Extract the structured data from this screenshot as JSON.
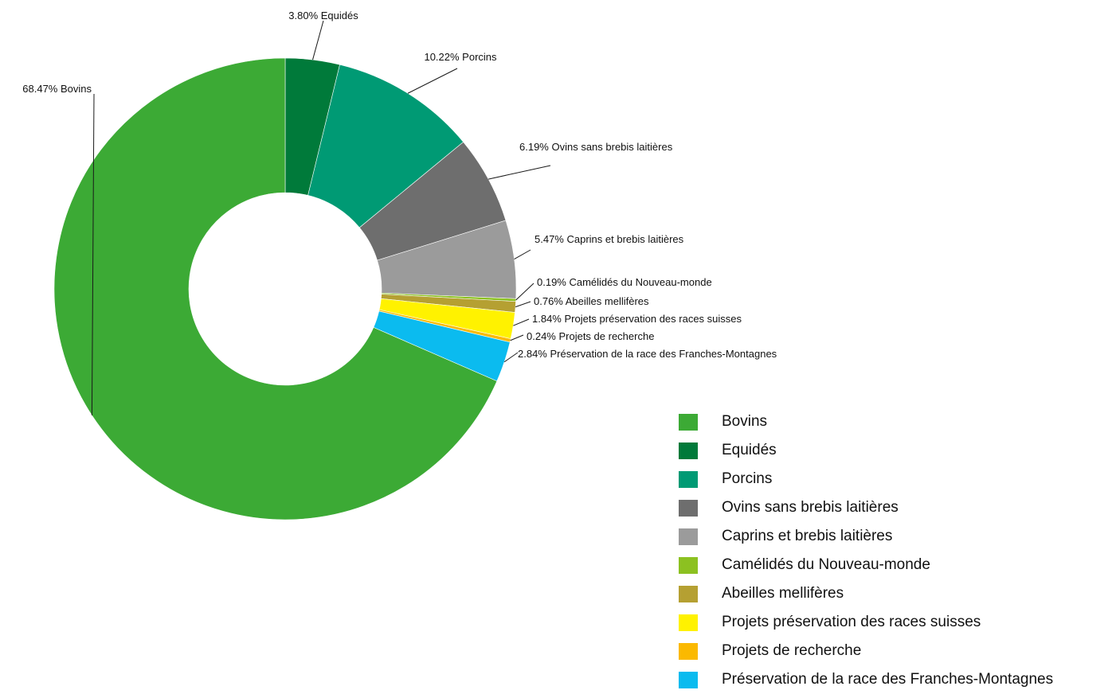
{
  "chart_data": {
    "type": "pie",
    "title": "",
    "donut": true,
    "legend_position": "bottom-right",
    "slices": [
      {
        "name": "Bovins",
        "value": 68.47,
        "label": "68.47% Bovins",
        "color": "#3caa35"
      },
      {
        "name": "Equidés",
        "value": 3.8,
        "label": "3.80% Equidés",
        "color": "#007a3a"
      },
      {
        "name": "Porcins",
        "value": 10.22,
        "label": "10.22% Porcins",
        "color": "#009a74"
      },
      {
        "name": "Ovins sans brebis laitières",
        "value": 6.19,
        "label": "6.19% Ovins sans brebis laitières",
        "color": "#6e6e6e"
      },
      {
        "name": "Caprins et brebis laitières",
        "value": 5.47,
        "label": "5.47% Caprins et brebis laitières",
        "color": "#9b9b9b"
      },
      {
        "name": "Camélidés du Nouveau-monde",
        "value": 0.19,
        "label": "0.19% Camélidés du Nouveau-monde",
        "color": "#8cc121"
      },
      {
        "name": "Abeilles mellifères",
        "value": 0.76,
        "label": "0.76% Abeilles mellifères",
        "color": "#b5a032"
      },
      {
        "name": "Projets préservation des races suisses",
        "value": 1.84,
        "label": "1.84% Projets préservation des races suisses",
        "color": "#fff200"
      },
      {
        "name": "Projets de recherche",
        "value": 0.24,
        "label": "0.24% Projets de recherche",
        "color": "#fbb900"
      },
      {
        "name": "Préservation de la race des Franches-Montagnes",
        "value": 2.84,
        "label": "2.84% Préservation de la race des Franches-Montagnes",
        "color": "#0bbbef"
      }
    ]
  }
}
